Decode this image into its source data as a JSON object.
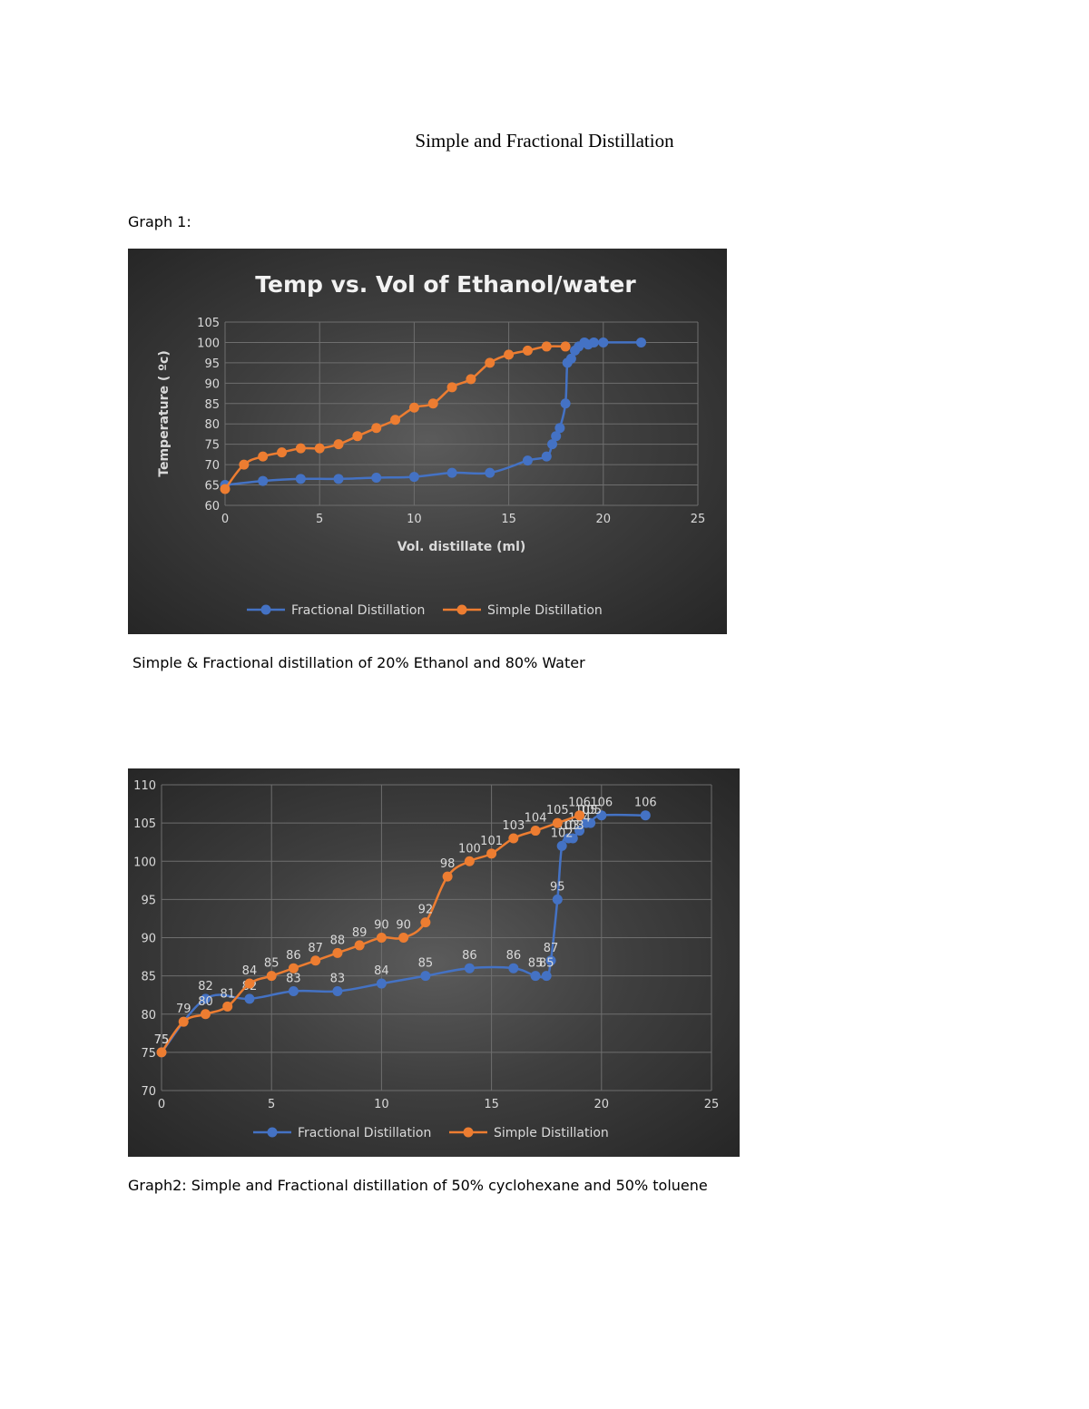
{
  "document": {
    "title": "Simple and Fractional Distillation",
    "graph1_label": "Graph 1:",
    "graph1_caption": "Simple & Fractional distillation of 20% Ethanol and 80% Water",
    "graph2_caption": "Graph2: Simple and Fractional distillation of 50% cyclohexane and 50% toluene"
  },
  "colors": {
    "fractional": "#4472c4",
    "simple": "#ed7d31",
    "gridline": "#6e6e6e",
    "text": "#d9d9d9"
  },
  "chart_data": [
    {
      "type": "scatter",
      "title": "Temp vs. Vol of Ethanol/water",
      "xlabel": "Vol. distillate (ml)",
      "ylabel": "Temperature ( ºc)",
      "xlim": [
        0,
        25
      ],
      "ylim": [
        60,
        105
      ],
      "xticks": [
        0,
        5,
        10,
        15,
        20,
        25
      ],
      "yticks": [
        60,
        65,
        70,
        75,
        80,
        85,
        90,
        95,
        100,
        105
      ],
      "grid": true,
      "legend": "bottom",
      "series": [
        {
          "name": "Fractional Distillation",
          "x": [
            0,
            2,
            4,
            6,
            8,
            10,
            12,
            14,
            16,
            17,
            17.3,
            17.5,
            17.7,
            18,
            18.1,
            18.3,
            18.5,
            18.7,
            19,
            19.2,
            19.5,
            20,
            22
          ],
          "y": [
            65,
            66,
            66.5,
            66.5,
            66.8,
            67,
            68,
            68,
            71,
            72,
            75,
            77,
            79,
            85,
            95,
            96,
            98,
            99,
            100,
            99.5,
            100,
            100,
            100
          ]
        },
        {
          "name": "Simple Distillation",
          "x": [
            0,
            1,
            2,
            3,
            4,
            5,
            6,
            7,
            8,
            9,
            10,
            11,
            12,
            13,
            14,
            15,
            16,
            17,
            18
          ],
          "y": [
            64,
            70,
            72,
            73,
            74,
            74,
            75,
            77,
            79,
            81,
            84,
            85,
            89,
            91,
            95,
            97,
            98,
            99,
            99
          ]
        }
      ]
    },
    {
      "type": "scatter",
      "title": "",
      "xlabel": "",
      "ylabel": "",
      "xlim": [
        0,
        25
      ],
      "ylim": [
        70,
        110
      ],
      "xticks": [
        0,
        5,
        10,
        15,
        20,
        25
      ],
      "yticks": [
        70,
        75,
        80,
        85,
        90,
        95,
        100,
        105,
        110
      ],
      "grid": true,
      "legend": "bottom",
      "series": [
        {
          "name": "Fractional Distillation",
          "x": [
            0,
            2,
            4,
            6,
            8,
            10,
            12,
            14,
            16,
            17,
            17.5,
            17.7,
            18,
            18.2,
            18.5,
            18.7,
            19,
            19.3,
            19.5,
            20,
            22
          ],
          "y": [
            75,
            82,
            82,
            83,
            83,
            84,
            85,
            86,
            86,
            85,
            85,
            87,
            95,
            102,
            103,
            103,
            104,
            105,
            105,
            106,
            106
          ],
          "labels": [
            "75",
            "82",
            "82",
            "83",
            "83",
            "84",
            "85",
            "86",
            "86",
            "85",
            "85",
            "87",
            "95",
            "102",
            "103",
            "103",
            "104",
            "105",
            "105",
            "106",
            "106"
          ]
        },
        {
          "name": "Simple Distillation",
          "x": [
            0,
            1,
            2,
            3,
            4,
            5,
            6,
            7,
            8,
            9,
            10,
            11,
            12,
            13,
            14,
            15,
            16,
            17,
            18,
            19
          ],
          "y": [
            75,
            79,
            80,
            81,
            84,
            85,
            86,
            87,
            88,
            89,
            90,
            90,
            92,
            98,
            100,
            101,
            103,
            104,
            105,
            106
          ],
          "labels": [
            "75",
            "79",
            "80",
            "81",
            "84",
            "85",
            "86",
            "87",
            "88",
            "89",
            "90",
            "90",
            "92",
            "98",
            "100",
            "101",
            "103",
            "104",
            "105",
            "106"
          ]
        }
      ]
    }
  ]
}
